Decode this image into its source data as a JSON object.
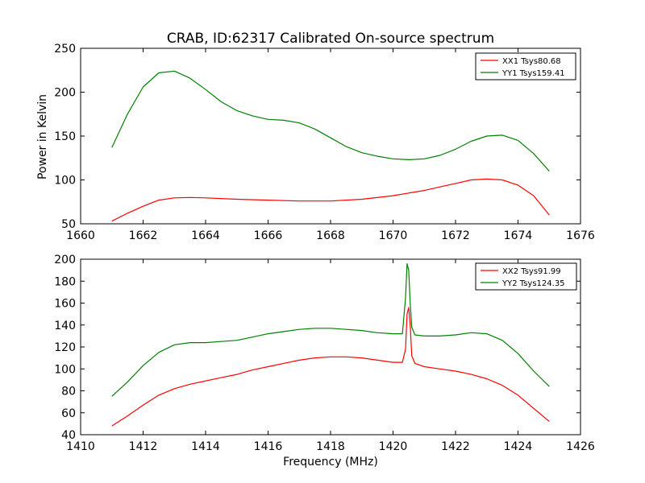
{
  "figure": {
    "title": "CRAB, ID:62317 Calibrated On-source spectrum",
    "ylabel": "Power in Kelvin",
    "xlabel": "Frequency (MHz)"
  },
  "chart_data": [
    {
      "type": "line",
      "title": "CRAB, ID:62317 Calibrated On-source spectrum",
      "xlabel": "",
      "ylabel": "Power in Kelvin",
      "xlim": [
        1660,
        1676
      ],
      "ylim": [
        50,
        250
      ],
      "xticks": [
        1660,
        1662,
        1664,
        1666,
        1668,
        1670,
        1672,
        1674,
        1676
      ],
      "yticks": [
        50,
        100,
        150,
        200,
        250
      ],
      "grid": false,
      "legend_position": "top-right",
      "series": [
        {
          "name": "XX1 Tsys80.68",
          "color": "#ff0000",
          "x": [
            1661.0,
            1661.5,
            1662.0,
            1662.5,
            1663.0,
            1663.5,
            1664.0,
            1665.0,
            1666.0,
            1667.0,
            1668.0,
            1669.0,
            1670.0,
            1670.5,
            1671.0,
            1671.5,
            1672.0,
            1672.5,
            1673.0,
            1673.5,
            1674.0,
            1674.5,
            1675.0
          ],
          "values": [
            53,
            62,
            70,
            77,
            79.5,
            80,
            79.5,
            78,
            77,
            76,
            76,
            78,
            82,
            85,
            88,
            92,
            96,
            100,
            101,
            100,
            94,
            82,
            60
          ]
        },
        {
          "name": "YY1 Tsys159.41",
          "color": "#008000",
          "x": [
            1661.0,
            1661.5,
            1662.0,
            1662.5,
            1663.0,
            1663.5,
            1664.0,
            1664.5,
            1665.0,
            1665.5,
            1666.0,
            1666.5,
            1667.0,
            1667.5,
            1668.0,
            1668.5,
            1669.0,
            1669.5,
            1670.0,
            1670.5,
            1671.0,
            1671.5,
            1672.0,
            1672.5,
            1673.0,
            1673.5,
            1674.0,
            1674.5,
            1675.0
          ],
          "values": [
            137,
            175,
            206,
            222,
            224,
            216,
            203,
            189,
            179,
            173,
            169,
            168,
            165,
            158,
            148,
            138,
            131,
            127,
            124,
            123,
            124,
            128,
            135,
            144,
            150,
            151,
            145,
            130,
            110
          ]
        }
      ]
    },
    {
      "type": "line",
      "title": "",
      "xlabel": "Frequency (MHz)",
      "ylabel": "",
      "xlim": [
        1410,
        1426
      ],
      "ylim": [
        40,
        200
      ],
      "xticks": [
        1410,
        1412,
        1414,
        1416,
        1418,
        1420,
        1422,
        1424,
        1426
      ],
      "yticks": [
        40,
        60,
        80,
        100,
        120,
        140,
        160,
        180,
        200
      ],
      "grid": false,
      "legend_position": "top-right",
      "series": [
        {
          "name": "XX2 Tsys91.99",
          "color": "#ff0000",
          "x": [
            1411.0,
            1411.5,
            1412.0,
            1412.5,
            1413.0,
            1413.5,
            1414.0,
            1414.5,
            1415.0,
            1415.5,
            1416.0,
            1416.5,
            1417.0,
            1417.5,
            1418.0,
            1418.5,
            1419.0,
            1419.5,
            1420.0,
            1420.3,
            1420.4,
            1420.45,
            1420.5,
            1420.55,
            1420.6,
            1420.7,
            1421.0,
            1421.5,
            1422.0,
            1422.5,
            1423.0,
            1423.5,
            1424.0,
            1424.5,
            1425.0
          ],
          "values": [
            48,
            57,
            67,
            76,
            82,
            86,
            89,
            92,
            95,
            99,
            102,
            105,
            108,
            110,
            111,
            111,
            110,
            108,
            106,
            106,
            118,
            150,
            156,
            140,
            112,
            105,
            102,
            100,
            98,
            95,
            91,
            85,
            76,
            64,
            52
          ]
        },
        {
          "name": "YY2 Tsys124.35",
          "color": "#008000",
          "x": [
            1411.0,
            1411.5,
            1412.0,
            1412.5,
            1413.0,
            1413.5,
            1414.0,
            1414.5,
            1415.0,
            1415.5,
            1416.0,
            1416.5,
            1417.0,
            1417.5,
            1418.0,
            1418.5,
            1419.0,
            1419.5,
            1420.0,
            1420.3,
            1420.4,
            1420.45,
            1420.5,
            1420.55,
            1420.6,
            1420.7,
            1421.0,
            1421.5,
            1422.0,
            1422.5,
            1423.0,
            1423.5,
            1424.0,
            1424.5,
            1425.0
          ],
          "values": [
            75,
            88,
            103,
            115,
            122,
            124,
            124,
            125,
            126,
            129,
            132,
            134,
            136,
            137,
            137,
            136,
            135,
            133,
            132,
            132,
            165,
            196,
            190,
            160,
            138,
            131,
            130,
            130,
            131,
            133,
            132,
            126,
            114,
            98,
            84
          ]
        }
      ]
    }
  ]
}
